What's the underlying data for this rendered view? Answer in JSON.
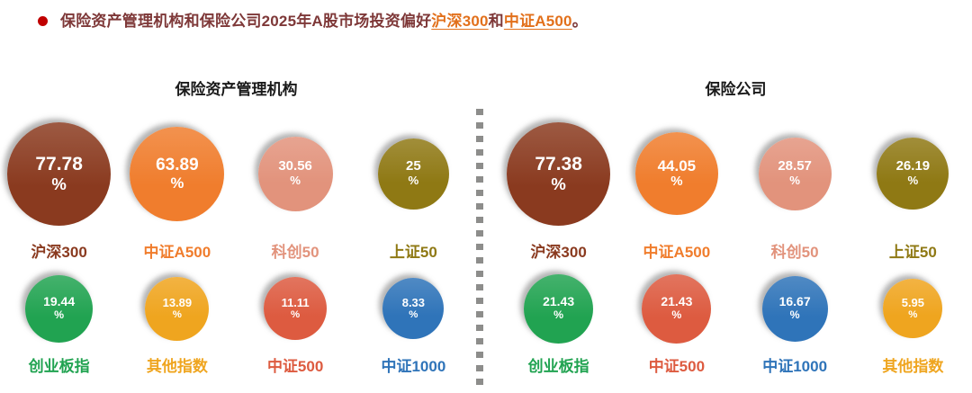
{
  "headline": {
    "prefix": "保险资产管理机构和保险公司2025年A股市场投资偏好",
    "highlight1": "沪深300",
    "connector": "和",
    "highlight2": "中证A500",
    "suffix": "。",
    "text_color": "#7E3838",
    "highlight_color": "#E2701B",
    "bullet_color": "#C00000"
  },
  "chart_data": {
    "type": "bar",
    "note": "bubble chart: circle size encodes preference share (%)",
    "unit": "%",
    "panels": [
      {
        "title": "保险资产管理机构",
        "categories": [
          "沪深300",
          "中证A500",
          "科创50",
          "上证50",
          "创业板指",
          "其他指数",
          "中证500",
          "中证1000"
        ],
        "values": [
          77.78,
          63.89,
          30.56,
          25,
          19.44,
          13.89,
          11.11,
          8.33
        ],
        "items": [
          {
            "label": "沪深300",
            "value": 77.78,
            "display": "77.78",
            "color": "#8A3A1F"
          },
          {
            "label": "中证A500",
            "value": 63.89,
            "display": "63.89",
            "color": "#F07D2D"
          },
          {
            "label": "科创50",
            "value": 30.56,
            "display": "30.56",
            "color": "#E2937C"
          },
          {
            "label": "上证50",
            "value": 25,
            "display": "25",
            "color": "#8F7914"
          },
          {
            "label": "创业板指",
            "value": 19.44,
            "display": "19.44",
            "color": "#21A351"
          },
          {
            "label": "其他指数",
            "value": 13.89,
            "display": "13.89",
            "color": "#EFA51F"
          },
          {
            "label": "中证500",
            "value": 11.11,
            "display": "11.11",
            "color": "#DD5B40"
          },
          {
            "label": "中证1000",
            "value": 8.33,
            "display": "8.33",
            "color": "#2F74B9"
          }
        ]
      },
      {
        "title": "保险公司",
        "categories": [
          "沪深300",
          "中证A500",
          "科创50",
          "上证50",
          "创业板指",
          "中证500",
          "中证1000",
          "其他指数"
        ],
        "values": [
          77.38,
          44.05,
          28.57,
          26.19,
          21.43,
          21.43,
          16.67,
          5.95
        ],
        "items": [
          {
            "label": "沪深300",
            "value": 77.38,
            "display": "77.38",
            "color": "#8A3A1F"
          },
          {
            "label": "中证A500",
            "value": 44.05,
            "display": "44.05",
            "color": "#F07D2D"
          },
          {
            "label": "科创50",
            "value": 28.57,
            "display": "28.57",
            "color": "#E2937C"
          },
          {
            "label": "上证50",
            "value": 26.19,
            "display": "26.19",
            "color": "#8F7914"
          },
          {
            "label": "创业板指",
            "value": 21.43,
            "display": "21.43",
            "color": "#21A351"
          },
          {
            "label": "中证500",
            "value": 21.43,
            "display": "21.43",
            "color": "#DD5B40"
          },
          {
            "label": "中证1000",
            "value": 16.67,
            "display": "16.67",
            "color": "#2F74B9"
          },
          {
            "label": "其他指数",
            "value": 5.95,
            "display": "5.95",
            "color": "#EFA51F"
          }
        ]
      }
    ],
    "divider_color": "#8D8D8B"
  }
}
